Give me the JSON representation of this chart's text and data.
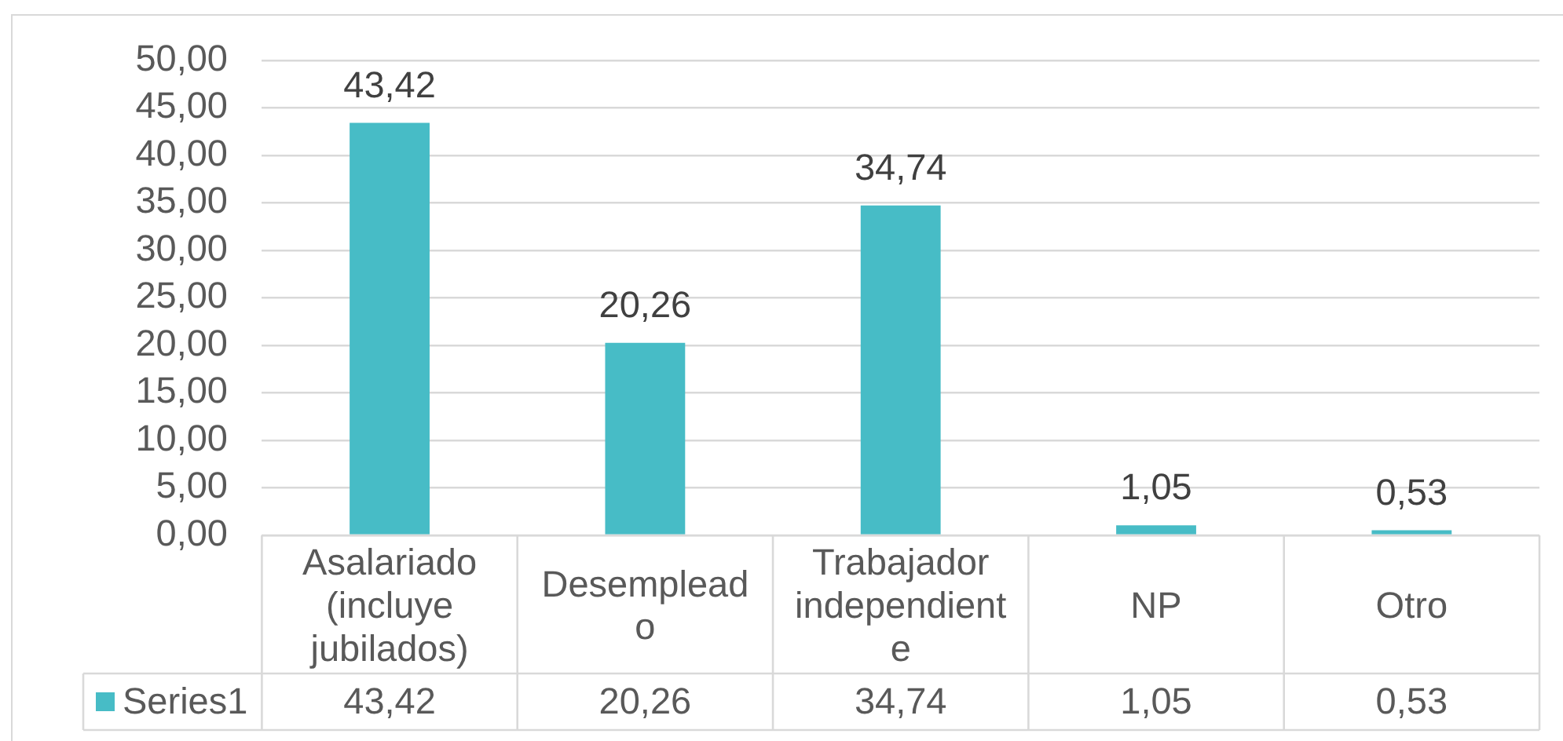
{
  "chart_data": {
    "type": "bar",
    "categories": [
      "Asalariado (incluye jubilados)",
      "Desempleado",
      "Trabajador independiente",
      "NP",
      "Otro"
    ],
    "series": [
      {
        "name": "Series1",
        "color": "#47bcc6",
        "values": [
          43.42,
          20.26,
          34.74,
          1.05,
          0.53
        ],
        "value_labels": [
          "43,42",
          "20,26",
          "34,74",
          "1,05",
          "0,53"
        ]
      }
    ],
    "ylim": [
      0,
      50
    ],
    "yticks": [
      {
        "value": 0,
        "label": "0,00"
      },
      {
        "value": 5,
        "label": "5,00"
      },
      {
        "value": 10,
        "label": "10,00"
      },
      {
        "value": 15,
        "label": "15,00"
      },
      {
        "value": 20,
        "label": "20,00"
      },
      {
        "value": 25,
        "label": "25,00"
      },
      {
        "value": 30,
        "label": "30,00"
      },
      {
        "value": 35,
        "label": "35,00"
      },
      {
        "value": 40,
        "label": "40,00"
      },
      {
        "value": 45,
        "label": "45,00"
      },
      {
        "value": 50,
        "label": "50,00"
      }
    ],
    "grid": "y",
    "legend": "bottom"
  }
}
